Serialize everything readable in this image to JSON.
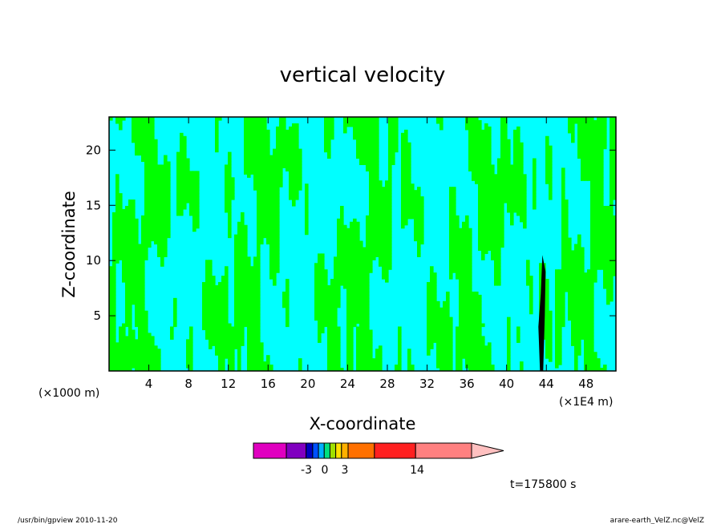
{
  "chart_data": {
    "type": "heatmap",
    "title": "vertical velocity",
    "xlabel": "X-coordinate",
    "ylabel": "Z-coordinate",
    "x_unit_left": "(×1000 m)",
    "x_unit_right": "(×1E4 m)",
    "x_ticks": [
      "4",
      "8",
      "12",
      "16",
      "20",
      "24",
      "28",
      "32",
      "36",
      "40",
      "44",
      "48"
    ],
    "x_tick_values": [
      4,
      8,
      12,
      16,
      20,
      24,
      28,
      32,
      36,
      40,
      44,
      48
    ],
    "y_ticks": [
      "5",
      "10",
      "15",
      "20"
    ],
    "y_tick_values": [
      5,
      10,
      15,
      20
    ],
    "xlim": [
      0,
      51
    ],
    "ylim": [
      0,
      23
    ],
    "colorbar": {
      "tick_labels": [
        "-3",
        "0",
        "3",
        "14"
      ],
      "bands": [
        {
          "color": "#e000c0",
          "weight": 40
        },
        {
          "color": "#8000c0",
          "weight": 24
        },
        {
          "color": "#0000c0",
          "weight": 8
        },
        {
          "color": "#0050ff",
          "weight": 7
        },
        {
          "color": "#00b0ff",
          "weight": 7
        },
        {
          "color": "#00e080",
          "weight": 7
        },
        {
          "color": "#a0e000",
          "weight": 7
        },
        {
          "color": "#ffe000",
          "weight": 7
        },
        {
          "color": "#ffb000",
          "weight": 8
        },
        {
          "color": "#ff7000",
          "weight": 32
        },
        {
          "color": "#ff2020",
          "weight": 50
        },
        {
          "color": "#ff8080",
          "weight": 68
        }
      ],
      "arrow_color": "#ffc0c0"
    },
    "fill_colors": {
      "positive_weak": "#00ff00",
      "negative_weak": "#00ffff",
      "strong": "#000000",
      "contour": "#000000"
    }
  },
  "time_label": "t=175800 s",
  "footer_left": "/usr/bin/gpview  2010-11-20",
  "footer_right": "arare-earth_VelZ.nc@VelZ"
}
